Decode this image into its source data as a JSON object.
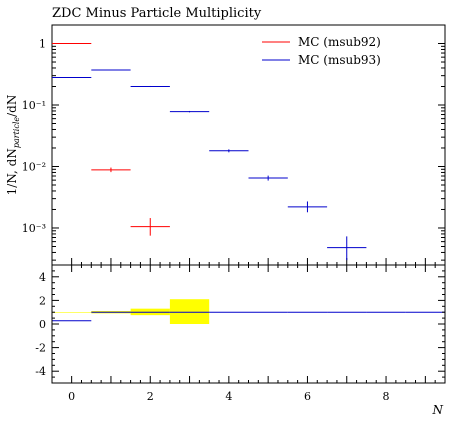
{
  "chart_data": [
    {
      "type": "scatter",
      "title": "ZDC Minus Particle Multiplicity",
      "ylabel": "1/N, dN_particle/dN",
      "yscale": "log",
      "ylim": [
        0.00025,
        2
      ],
      "xlim": [
        -0.5,
        9.5
      ],
      "ytick_labels": [
        "1",
        "10⁻¹",
        "10⁻²",
        "10⁻³"
      ],
      "ytick_values": [
        1,
        0.1,
        0.01,
        0.001
      ],
      "legend_position": "top-right",
      "series": [
        {
          "name": "MC (msub92)",
          "color": "#ff0000",
          "x": [
            0,
            1,
            2
          ],
          "y": [
            1.0,
            0.0088,
            0.00105
          ],
          "yerr_low": [
            0,
            0.0007,
            0.0003
          ],
          "yerr_high": [
            0,
            0.0008,
            0.0004
          ]
        },
        {
          "name": "MC (msub93)",
          "color": "#0000cc",
          "x": [
            0,
            1,
            2,
            3,
            4,
            5,
            6,
            7
          ],
          "y": [
            0.28,
            0.37,
            0.2,
            0.078,
            0.018,
            0.0065,
            0.0022,
            0.00048
          ],
          "yerr_low": [
            0.004,
            0.005,
            0.004,
            0.002,
            0.001,
            0.0006,
            0.0004,
            0.00018
          ],
          "yerr_high": [
            0.004,
            0.005,
            0.004,
            0.002,
            0.001,
            0.0006,
            0.0005,
            0.00025
          ]
        }
      ]
    },
    {
      "type": "line",
      "title": "",
      "xlabel": "N",
      "ylim": [
        -5,
        5
      ],
      "yticks": [
        4,
        2,
        0,
        -2,
        -4
      ],
      "xticks": [
        0,
        2,
        4,
        6,
        8
      ],
      "band": {
        "color": "#ffff00",
        "x_low": [
          -0.5,
          0.5,
          1.5,
          2.5
        ],
        "x_high": [
          0.5,
          1.5,
          2.5,
          3.5
        ],
        "low": [
          1.0,
          0.9,
          0.75,
          0.0
        ],
        "high": [
          1.0,
          1.1,
          1.3,
          2.1
        ]
      },
      "series": [
        {
          "name": "MC (msub93)",
          "color": "#0000cc",
          "x_low": [
            -0.5,
            0.5,
            1.5,
            2.5,
            3.5,
            4.5,
            5.5,
            6.5,
            7.5,
            8.5
          ],
          "x_high": [
            0.5,
            1.5,
            2.5,
            3.5,
            4.5,
            5.5,
            6.5,
            7.5,
            8.5,
            9.5
          ],
          "values": [
            0.28,
            1.0,
            1.0,
            1.0,
            1.0,
            1.0,
            1.0,
            1.0,
            1.0,
            1.0
          ]
        }
      ]
    }
  ]
}
